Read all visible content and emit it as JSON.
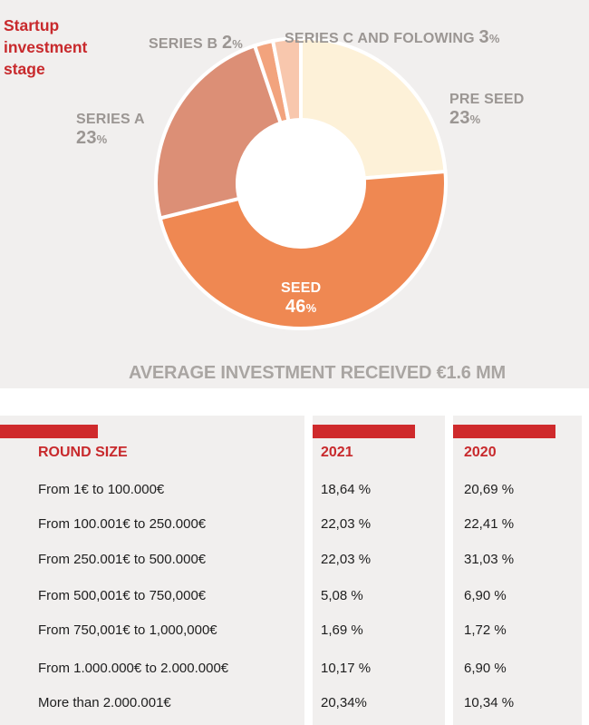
{
  "chart_data": {
    "type": "pie",
    "title": "Startup investment stage",
    "slices": [
      {
        "label": "PRE SEED",
        "value": 23,
        "color": "#fdf1d8"
      },
      {
        "label": "SEED",
        "value": 46,
        "color": "#ef8852"
      },
      {
        "label": "SERIES A",
        "value": 23,
        "color": "#dc8f76"
      },
      {
        "label": "SERIES B",
        "value": 2,
        "color": "#f2a37d"
      },
      {
        "label": "SERIES C AND FOLOWING",
        "value": 3,
        "color": "#f8c7ad"
      }
    ],
    "footer": "AVERAGE INVESTMENT RECEIVED €1.6 MM"
  },
  "labels": {
    "title_line1": "Startup",
    "title_line2": "investment",
    "title_line3": "stage",
    "series_b_name": "SERIES B",
    "series_b_value": "2",
    "series_c_name": "SERIES C AND FOLOWING",
    "series_c_value": "3",
    "pre_seed_name": "PRE SEED",
    "pre_seed_value": "23",
    "series_a_name": "SERIES A",
    "series_a_value": "23",
    "seed_name": "SEED",
    "seed_value": "46",
    "pct_sign": "%"
  },
  "table": {
    "headers": [
      "ROUND SIZE",
      "2021",
      "2020"
    ],
    "rows": [
      [
        "From 1€ to 100.000€",
        "18,64 %",
        "20,69 %"
      ],
      [
        "From 100.001€ to 250.000€",
        "22,03 %",
        "22,41 %"
      ],
      [
        "From 250.001€ to 500.000€",
        "22,03 %",
        "31,03 %"
      ],
      [
        "From 500,001€ to 750,000€",
        "5,08 %",
        "6,90 %"
      ],
      [
        "From 750,001€ to 1,000,000€",
        "1,69 %",
        "1,72 %"
      ],
      [
        "From 1.000.000€ to 2.000.000€",
        "10,17 %",
        "6,90 %"
      ],
      [
        "More than 2.000.001€",
        "20,34%",
        "10,34 %"
      ]
    ]
  }
}
